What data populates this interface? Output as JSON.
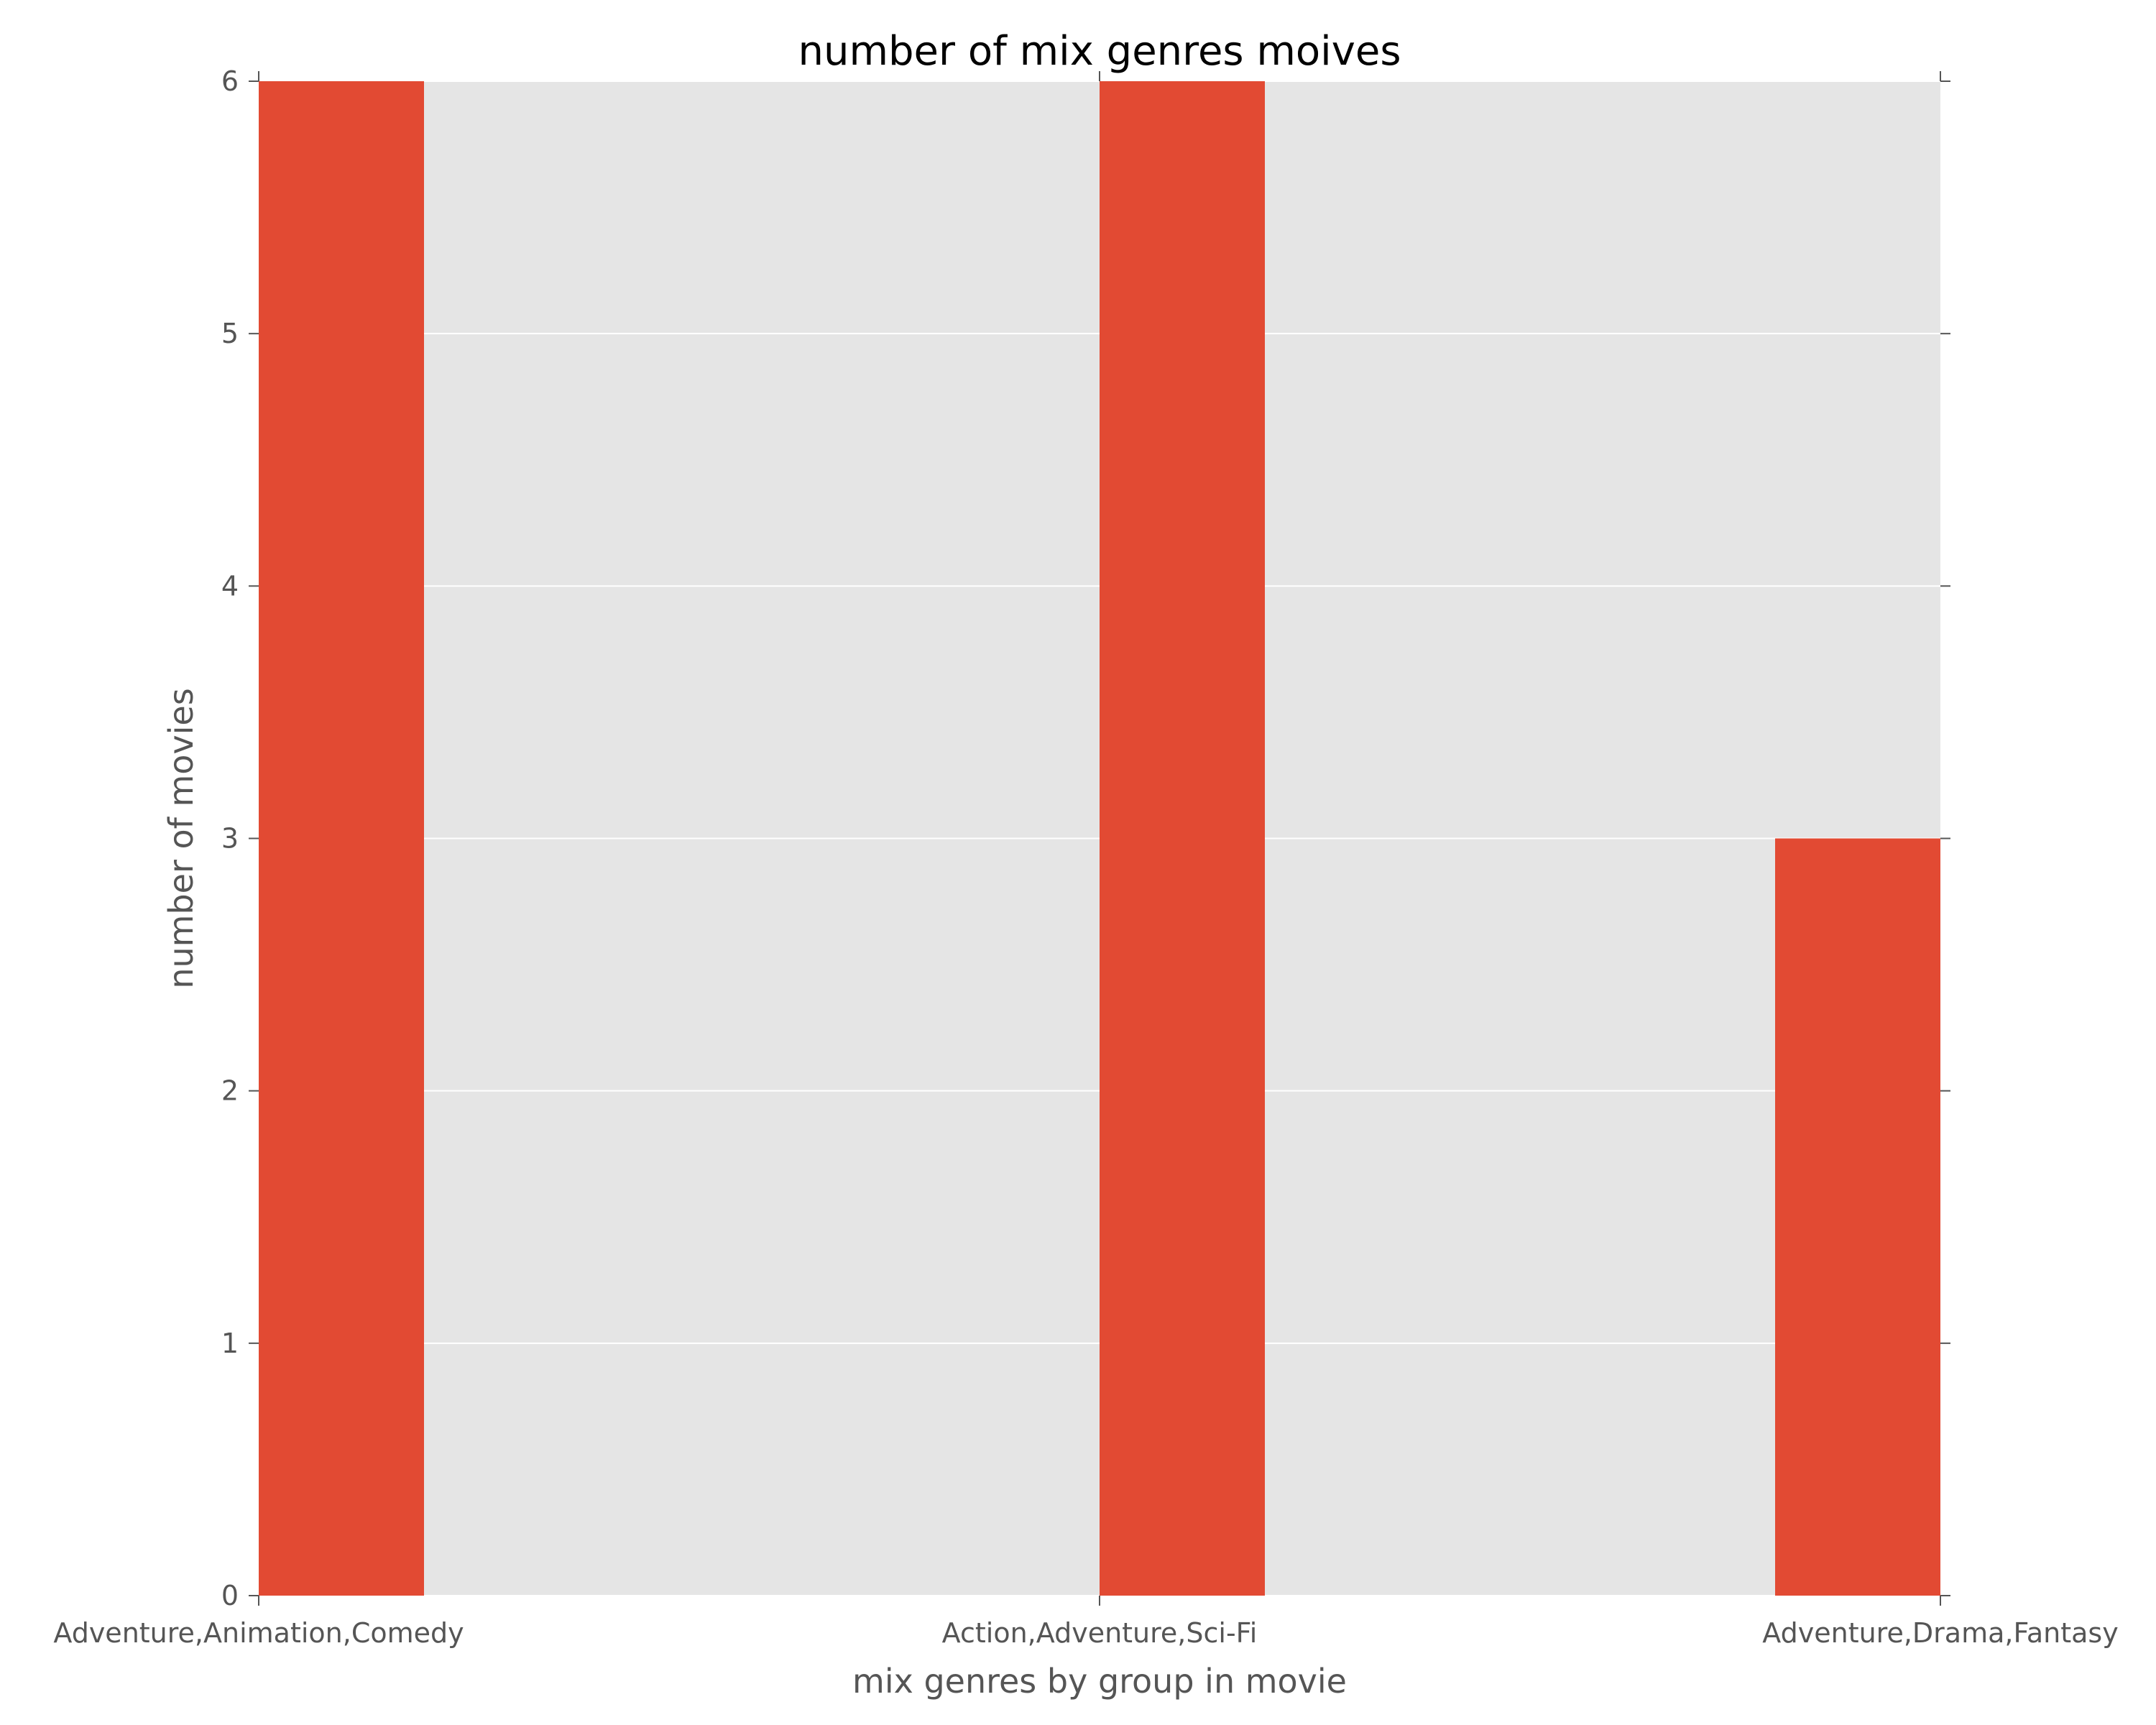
{
  "chart_data": {
    "type": "bar",
    "title": "number of mix genres moives",
    "xlabel": "mix genres by group in movie",
    "ylabel": "number of movies",
    "categories": [
      "Adventure,Animation,Comedy",
      "Action,Adventure,Sci-Fi",
      "Adventure,Drama,Fantasy"
    ],
    "values": [
      6,
      6,
      3
    ],
    "ylim": [
      0,
      6
    ],
    "yticks": [
      "0",
      "1",
      "2",
      "3",
      "4",
      "5",
      "6"
    ],
    "grid": true,
    "legend": "none",
    "colors": {
      "bar": "#e24a33",
      "plot_background": "#e5e5e5",
      "grid": "#ffffff",
      "text": "#555555",
      "title": "#000000"
    }
  }
}
